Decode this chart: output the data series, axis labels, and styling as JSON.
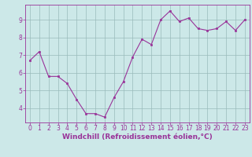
{
  "x": [
    0,
    1,
    2,
    3,
    4,
    5,
    6,
    7,
    8,
    9,
    10,
    11,
    12,
    13,
    14,
    15,
    16,
    17,
    18,
    19,
    20,
    21,
    22,
    23
  ],
  "y": [
    6.7,
    7.2,
    5.8,
    5.8,
    5.4,
    4.5,
    3.7,
    3.7,
    3.5,
    4.6,
    5.5,
    6.9,
    7.9,
    7.6,
    9.0,
    9.5,
    8.9,
    9.1,
    8.5,
    8.4,
    8.5,
    8.9,
    8.4,
    9.0
  ],
  "line_color": "#993399",
  "marker_color": "#993399",
  "bg_color": "#cce8e8",
  "grid_color": "#99bbbb",
  "spine_color": "#993399",
  "xlabel": "Windchill (Refroidissement éolien,°C)",
  "xlim": [
    -0.5,
    23.5
  ],
  "ylim": [
    3.2,
    9.85
  ],
  "yticks": [
    4,
    5,
    6,
    7,
    8,
    9
  ],
  "xticks": [
    0,
    1,
    2,
    3,
    4,
    5,
    6,
    7,
    8,
    9,
    10,
    11,
    12,
    13,
    14,
    15,
    16,
    17,
    18,
    19,
    20,
    21,
    22,
    23
  ],
  "font_color": "#993399",
  "tick_fontsize": 5.5,
  "label_fontsize": 6.5
}
